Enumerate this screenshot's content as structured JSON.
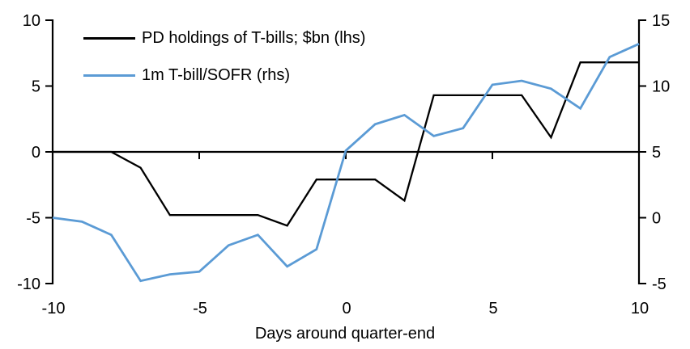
{
  "chart_data": {
    "type": "line",
    "title": "",
    "xlabel": "Days around quarter-end",
    "x": [
      -10,
      -9,
      -8,
      -7,
      -6,
      -5,
      -4,
      -3,
      -2,
      -1,
      0,
      1,
      2,
      3,
      4,
      5,
      6,
      7,
      8,
      9,
      10
    ],
    "series": [
      {
        "name": "PD holdings of T-bills; $bn (lhs)",
        "axis": "lhs",
        "color": "#000000",
        "values": [
          0,
          0,
          0,
          -1.2,
          -4.8,
          -4.8,
          -4.8,
          -4.8,
          -5.6,
          -2.1,
          -2.1,
          -2.1,
          -3.7,
          4.3,
          4.3,
          4.3,
          4.3,
          1.1,
          6.8,
          6.8,
          6.8
        ]
      },
      {
        "name": "1m T-bill/SOFR (rhs)",
        "axis": "rhs",
        "color": "#5B9BD5",
        "values": [
          0,
          -0.3,
          -1.3,
          -4.8,
          -4.3,
          -4.1,
          -2.1,
          -1.3,
          -3.7,
          -2.4,
          5.1,
          7.1,
          7.8,
          6.2,
          6.8,
          10.1,
          10.4,
          9.8,
          8.3,
          12.2,
          13.2
        ]
      }
    ],
    "left_axis": {
      "min": -10,
      "max": 10,
      "ticks": [
        10,
        5,
        0,
        -5,
        -10
      ]
    },
    "right_axis": {
      "min": -5,
      "max": 15,
      "ticks": [
        15,
        10,
        5,
        0,
        -5
      ]
    },
    "x_axis": {
      "min": -10,
      "max": 10,
      "ticks": [
        -10,
        -5,
        0,
        5,
        10
      ],
      "zero_line_ticks": [
        -5,
        0,
        5
      ]
    },
    "legend_position": "top-left",
    "grid": false,
    "axis_color": "#000000"
  }
}
